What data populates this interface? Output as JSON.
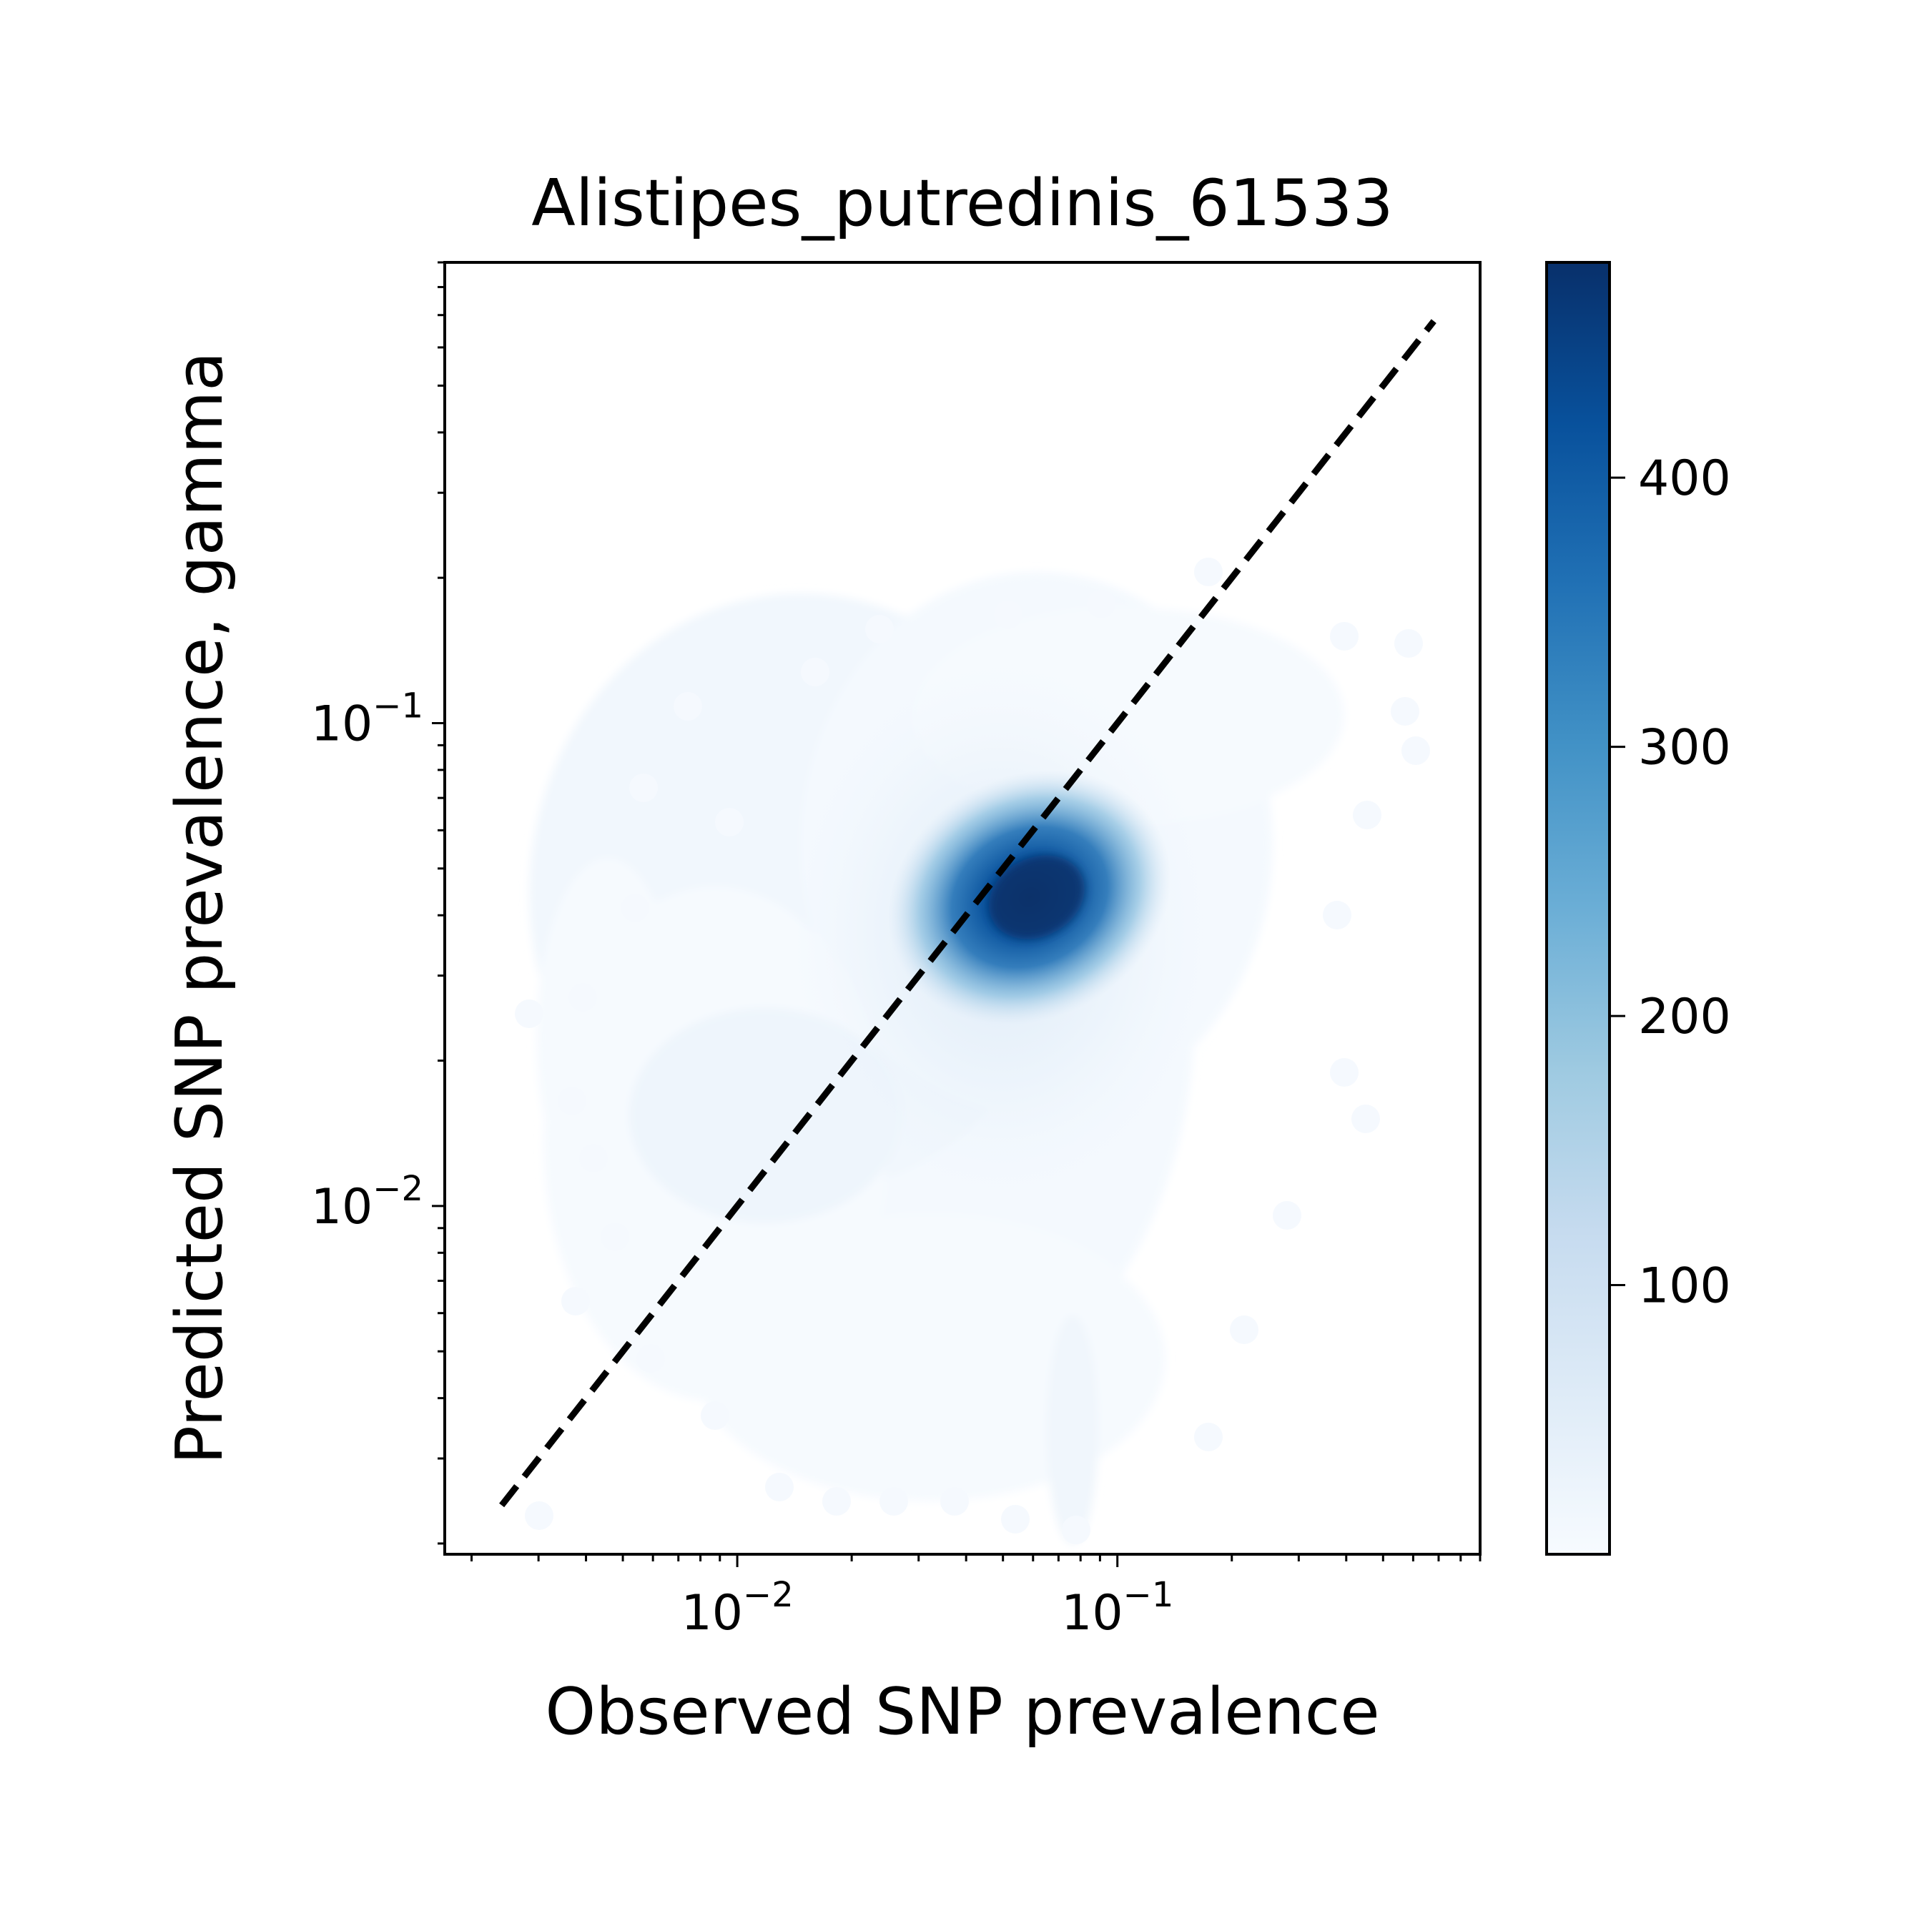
{
  "chart_data": {
    "type": "heatmap",
    "title": "Alistipes_putredinis_61533",
    "xlabel": "Observed SNP prevalence",
    "ylabel": "Predicted SNP prevalence, gamma",
    "xscale": "log",
    "yscale": "log",
    "xlim": [
      0.0017,
      0.9
    ],
    "ylim": [
      0.0019,
      0.9
    ],
    "x_ticks": [
      {
        "value": 0.01,
        "base": "10",
        "exp": "−2"
      },
      {
        "value": 0.1,
        "base": "10",
        "exp": "−1"
      }
    ],
    "y_ticks": [
      {
        "value": 0.01,
        "base": "10",
        "exp": "−2"
      },
      {
        "value": 0.1,
        "base": "10",
        "exp": "−1"
      }
    ],
    "colormap": "Blues",
    "colorbar": {
      "range": [
        0,
        480
      ],
      "ticks": [
        100,
        200,
        300,
        400
      ]
    },
    "density_peak": {
      "x": 0.065,
      "y": 0.045
    },
    "reference_line": {
      "style": "dashed",
      "color": "#000000",
      "from": 0.0024,
      "to": 0.68
    },
    "grid": false,
    "legend": "none"
  }
}
